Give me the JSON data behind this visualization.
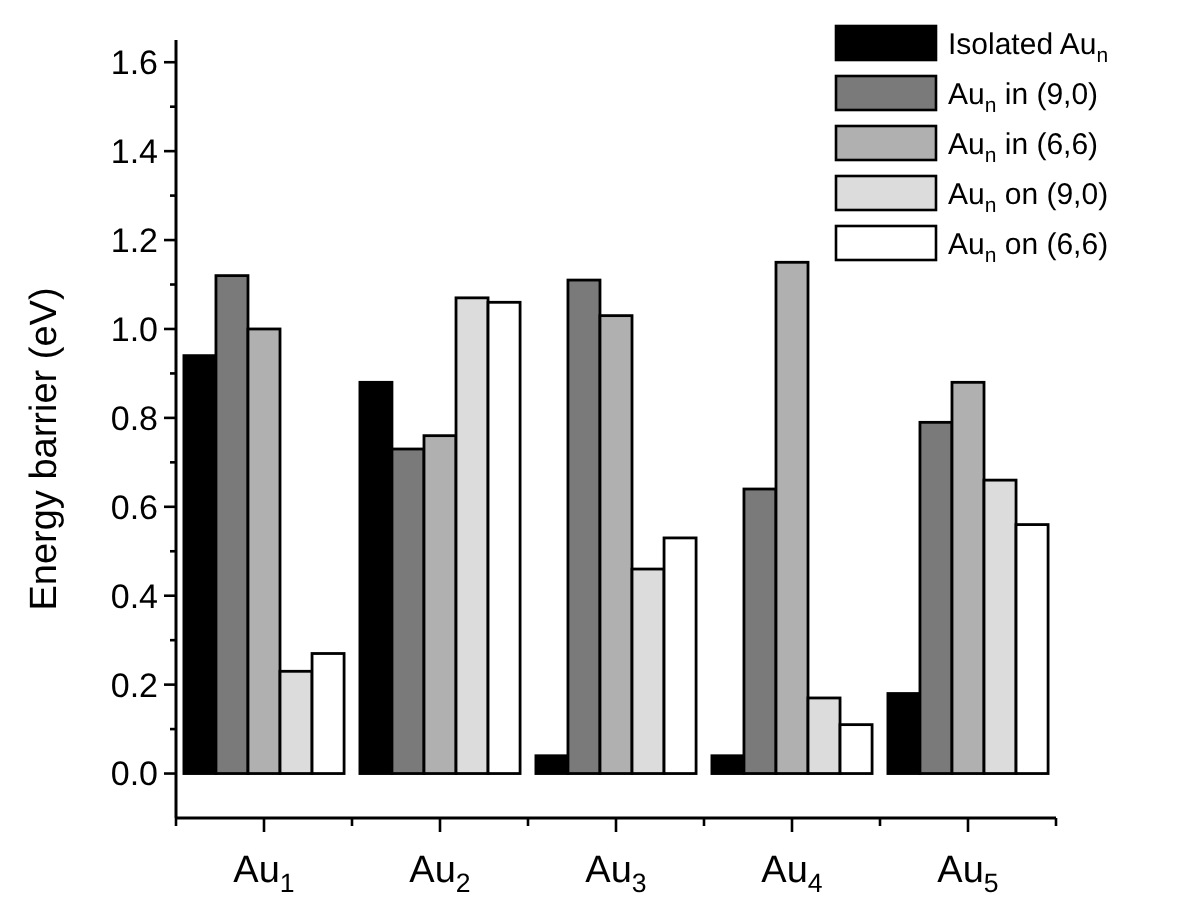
{
  "chart_data": {
    "type": "bar",
    "ylabel": "Energy barrier (eV)",
    "categories": [
      "Au$_{1}$",
      "Au$_{2}$",
      "Au$_{3}$",
      "Au$_{4}$",
      "Au$_{5}$"
    ],
    "series": [
      {
        "name": "Isolated Au$_{n}$",
        "color": "#000000",
        "values": [
          0.94,
          0.88,
          0.04,
          0.04,
          0.18
        ]
      },
      {
        "name": "Au$_{n}$ in (9,0)",
        "color": "#7a7a7a",
        "values": [
          1.12,
          0.73,
          1.11,
          0.64,
          0.79
        ]
      },
      {
        "name": "Au$_{n}$ in (6,6)",
        "color": "#b0b0b0",
        "values": [
          1.0,
          0.76,
          1.03,
          1.15,
          0.88
        ]
      },
      {
        "name": "Au$_{n}$ on (9,0)",
        "color": "#dcdcdc",
        "values": [
          0.23,
          1.07,
          0.46,
          0.17,
          0.66
        ]
      },
      {
        "name": "Au$_{n}$ on (6,6)",
        "color": "#ffffff",
        "values": [
          0.27,
          1.06,
          0.53,
          0.11,
          0.56
        ]
      }
    ],
    "ylim": [
      -0.1,
      1.65
    ],
    "yticks": [
      {
        "value": 0,
        "label": "0.0"
      },
      {
        "value": 0.1,
        "label": null
      },
      {
        "value": 0.2,
        "label": "0.2"
      },
      {
        "value": 0.3,
        "label": null
      },
      {
        "value": 0.4,
        "label": "0.4"
      },
      {
        "value": 0.5,
        "label": null
      },
      {
        "value": 0.6,
        "label": "0.6"
      },
      {
        "value": 0.7,
        "label": null
      },
      {
        "value": 0.8,
        "label": "0.8"
      },
      {
        "value": 0.9,
        "label": null
      },
      {
        "value": 1.0,
        "label": "1.0"
      },
      {
        "value": 1.1,
        "label": null
      },
      {
        "value": 1.2,
        "label": "1.2"
      },
      {
        "value": 1.3,
        "label": null
      },
      {
        "value": 1.4,
        "label": "1.4"
      },
      {
        "value": 1.5,
        "label": null
      },
      {
        "value": 1.6,
        "label": "1.6"
      }
    ],
    "grid": false,
    "legend": "top right"
  }
}
